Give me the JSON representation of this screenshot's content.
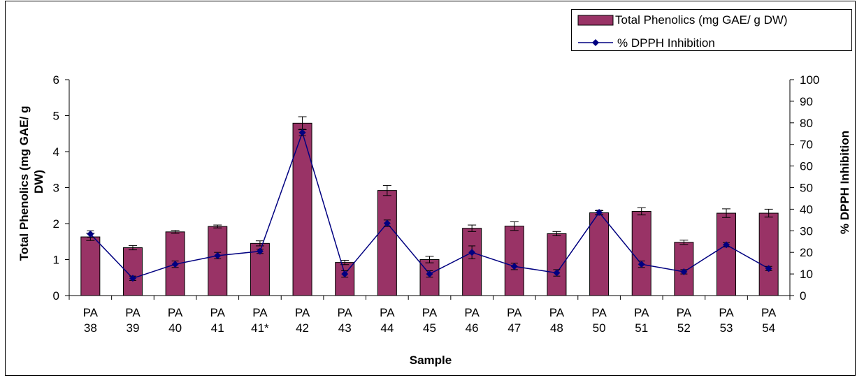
{
  "chart_data": {
    "type": "bar",
    "categories": [
      [
        "PA",
        "38"
      ],
      [
        "PA",
        "39"
      ],
      [
        "PA",
        "40"
      ],
      [
        "PA",
        "41"
      ],
      [
        "PA",
        "41*"
      ],
      [
        "PA",
        "42"
      ],
      [
        "PA",
        "43"
      ],
      [
        "PA",
        "44"
      ],
      [
        "PA",
        "45"
      ],
      [
        "PA",
        "46"
      ],
      [
        "PA",
        "47"
      ],
      [
        "PA",
        "48"
      ],
      [
        "PA",
        "50"
      ],
      [
        "PA",
        "51"
      ],
      [
        "PA",
        "52"
      ],
      [
        "PA",
        "53"
      ],
      [
        "PA",
        "54"
      ]
    ],
    "xlabel": "Sample",
    "ylabel_left": [
      "Total Phenolics (mg GAE/ g",
      "DW)"
    ],
    "ylabel_right": "% DPPH Inhibition",
    "y_left_range": [
      0,
      6
    ],
    "y_left_ticks": [
      "0",
      "1",
      "2",
      "3",
      "4",
      "5",
      "6"
    ],
    "y_right_range": [
      0,
      100
    ],
    "y_right_ticks": [
      "0",
      "10",
      "20",
      "30",
      "40",
      "50",
      "60",
      "70",
      "80",
      "90",
      "100"
    ],
    "grid": false,
    "legend_position": "top-right",
    "series": [
      {
        "name": "Total Phenolics (mg GAE/ g DW)",
        "type": "bar",
        "axis": "left",
        "color": "#993366",
        "values": [
          1.63,
          1.33,
          1.77,
          1.92,
          1.45,
          4.79,
          0.92,
          2.92,
          1.0,
          1.87,
          1.93,
          1.72,
          2.3,
          2.34,
          1.48,
          2.29,
          2.29
        ],
        "errors": [
          0.1,
          0.06,
          0.04,
          0.04,
          0.07,
          0.18,
          0.06,
          0.14,
          0.09,
          0.09,
          0.12,
          0.06,
          0.06,
          0.1,
          0.06,
          0.12,
          0.11
        ]
      },
      {
        "name": "% DPPH Inhibition",
        "type": "line",
        "axis": "right",
        "color": "#000080",
        "values": [
          28.5,
          8.0,
          14.5,
          18.5,
          20.5,
          75.5,
          10.0,
          33.5,
          10.0,
          20.0,
          13.5,
          10.5,
          38.5,
          14.5,
          11.0,
          23.5,
          12.5
        ],
        "errors": [
          1.5,
          1.0,
          1.5,
          1.5,
          1.0,
          1.5,
          1.5,
          1.5,
          1.5,
          3.0,
          1.5,
          1.5,
          1.0,
          1.5,
          1.0,
          1.0,
          1.0
        ]
      }
    ]
  }
}
